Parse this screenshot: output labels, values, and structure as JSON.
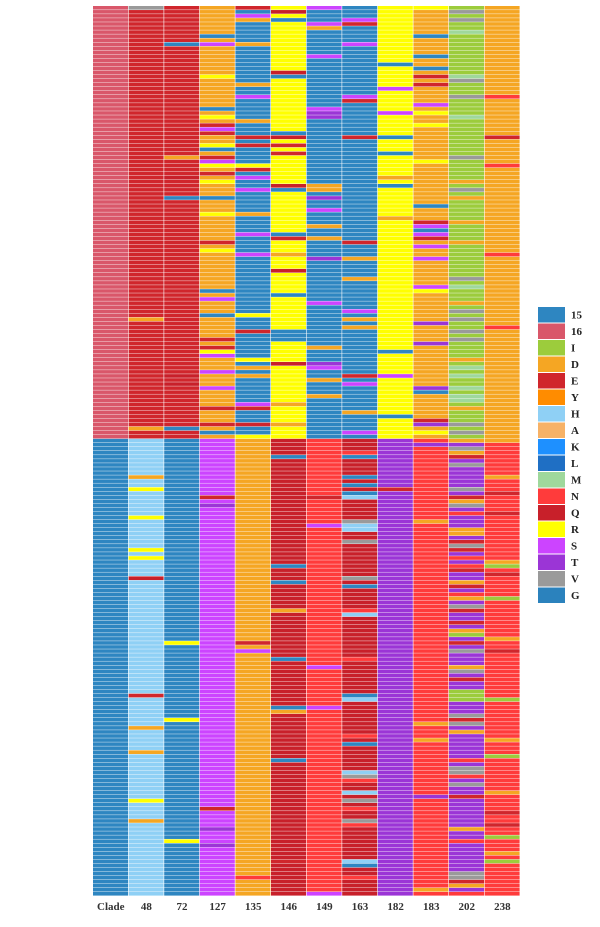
{
  "chart_data": {
    "type": "heatmap",
    "title": "",
    "xlabel": "",
    "ylabel": "",
    "columns": [
      "Clade",
      "48",
      "72",
      "127",
      "135",
      "146",
      "149",
      "163",
      "182",
      "183",
      "202",
      "238"
    ],
    "row_count": 220,
    "clade_split_fraction": 0.485,
    "legend": {
      "position": "right",
      "entries": [
        {
          "label": "15",
          "color": "#2e86c1"
        },
        {
          "label": "16",
          "color": "#d9576a"
        },
        {
          "label": "I",
          "color": "#9ccc3c"
        },
        {
          "label": "D",
          "color": "#f5a623"
        },
        {
          "label": "E",
          "color": "#d0262c"
        },
        {
          "label": "Y",
          "color": "#ff8c00"
        },
        {
          "label": "H",
          "color": "#8fd0f5"
        },
        {
          "label": "A",
          "color": "#f7b267"
        },
        {
          "label": "K",
          "color": "#1e90ff"
        },
        {
          "label": "L",
          "color": "#1f6fc4"
        },
        {
          "label": "M",
          "color": "#9fd89c"
        },
        {
          "label": "N",
          "color": "#ff3b3b"
        },
        {
          "label": "Q",
          "color": "#c8202a"
        },
        {
          "label": "R",
          "color": "#ffff00"
        },
        {
          "label": "S",
          "color": "#cc44ff"
        },
        {
          "label": "T",
          "color": "#9b35d6"
        },
        {
          "label": "V",
          "color": "#9a9a9a"
        },
        {
          "label": "G",
          "color": "#2b82bd"
        }
      ]
    },
    "column_profiles": [
      {
        "column": "Clade",
        "group_a": "16",
        "group_b": "15"
      },
      {
        "column": "48",
        "group_a": "E",
        "group_b": "H"
      },
      {
        "column": "72",
        "group_a": "E",
        "group_b": "15"
      },
      {
        "column": "127",
        "group_a": "D",
        "group_b": "S"
      },
      {
        "column": "135",
        "group_a": "15",
        "group_b": "D"
      },
      {
        "column": "146",
        "group_a": "R",
        "group_b": "Q"
      },
      {
        "column": "149",
        "group_a": "15",
        "group_b": "N"
      },
      {
        "column": "163",
        "group_a": "15",
        "group_b": "Q"
      },
      {
        "column": "182",
        "group_a": "R",
        "group_b": "T"
      },
      {
        "column": "183",
        "group_a": "D",
        "group_b": "N"
      },
      {
        "column": "202",
        "group_a": "I",
        "group_b": "T"
      },
      {
        "column": "238",
        "group_a": "D",
        "group_b": "N"
      }
    ]
  }
}
